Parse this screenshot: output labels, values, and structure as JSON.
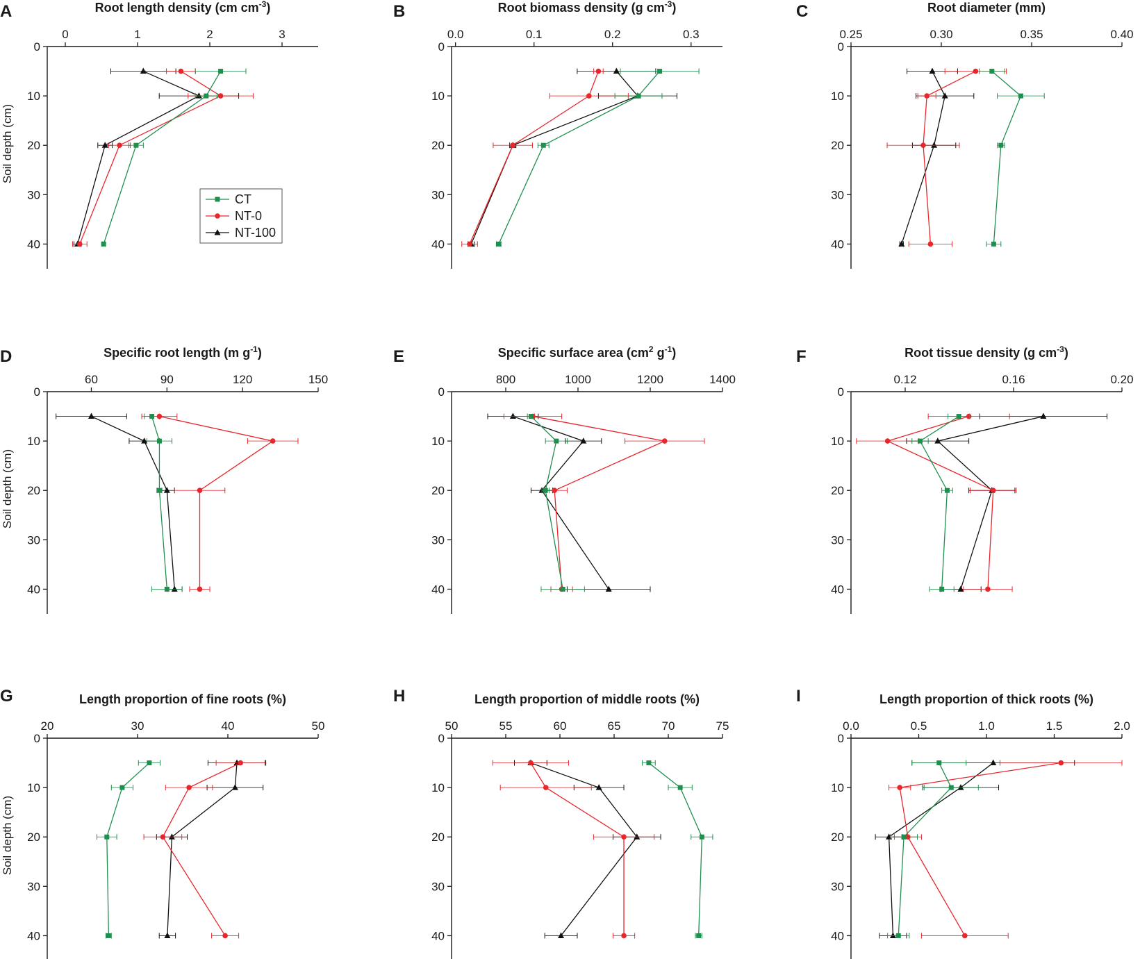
{
  "figure": {
    "y_axis_label": "Soil depth (cm)",
    "series_names": [
      "CT",
      "NT-0",
      "NT-100"
    ]
  },
  "legend": {
    "entries": [
      "CT",
      "NT-0",
      "NT-100"
    ]
  },
  "colors": {
    "CT": "#1f8f4e",
    "NT-0": "#e8262b",
    "NT-100": "#111111",
    "axis": "#1a1a1a"
  },
  "chart_data": [
    {
      "type": "line",
      "panel": "A",
      "title": "Root length density (cm cm-3)",
      "xlabel": "Root length density (cm cm-3)",
      "ylabel": "Soil depth (cm)",
      "xlim": [
        -0.25,
        3.5
      ],
      "xticks": [
        0,
        1,
        2,
        3
      ],
      "xtick_labels": [
        "0",
        "1",
        "2",
        "3"
      ],
      "ylim": [
        0,
        45
      ],
      "yticks": [
        0,
        10,
        20,
        30,
        40
      ],
      "ytick_labels": [
        "0",
        "10",
        "20",
        "30",
        "40"
      ],
      "depths": [
        5,
        10,
        20,
        40
      ],
      "series": [
        {
          "name": "CT",
          "x": [
            2.15,
            1.95,
            0.98,
            0.53
          ],
          "err": [
            0.35,
            0.15,
            0.1,
            0.02
          ]
        },
        {
          "name": "NT-0",
          "x": [
            1.6,
            2.15,
            0.75,
            0.2
          ],
          "err": [
            0.2,
            0.45,
            0.15,
            0.1
          ]
        },
        {
          "name": "NT-100",
          "x": [
            1.08,
            1.85,
            0.55,
            0.17
          ],
          "err": [
            0.45,
            0.55,
            0.1,
            0.05
          ]
        }
      ],
      "legend_visible": true,
      "legend_position": "lower-right"
    },
    {
      "type": "line",
      "panel": "B",
      "title": "Root biomass density (g cm-3)",
      "xlabel": "Root biomass density (g cm-3)",
      "ylabel": "Soil depth (cm)",
      "xlim": [
        -0.005,
        0.34
      ],
      "xticks": [
        0,
        0.1,
        0.2,
        0.3
      ],
      "xtick_labels": [
        "0.0",
        "0.1",
        "0.2",
        "0.3"
      ],
      "ylim": [
        0,
        45
      ],
      "yticks": [
        0,
        10,
        20,
        30,
        40
      ],
      "ytick_labels": [
        "0",
        "10",
        "20",
        "30",
        "40"
      ],
      "depths": [
        5,
        10,
        20,
        40
      ],
      "series": [
        {
          "name": "CT",
          "x": [
            0.26,
            0.233,
            0.112,
            0.055
          ],
          "err": [
            0.05,
            0.03,
            0.007,
            0.003
          ]
        },
        {
          "name": "NT-0",
          "x": [
            0.182,
            0.17,
            0.073,
            0.018
          ],
          "err": [
            0.006,
            0.05,
            0.025,
            0.01
          ]
        },
        {
          "name": "NT-100",
          "x": [
            0.205,
            0.232,
            0.073,
            0.02
          ],
          "err": [
            0.05,
            0.05,
            0.004,
            0.004
          ]
        }
      ],
      "legend_visible": false
    },
    {
      "type": "line",
      "panel": "C",
      "title": "Root diameter (mm)",
      "xlabel": "Root diameter (mm)",
      "ylabel": "Soil depth (cm)",
      "xlim": [
        0.25,
        0.4
      ],
      "xticks": [
        0.25,
        0.3,
        0.35,
        0.4
      ],
      "xtick_labels": [
        "0.25",
        "0.30",
        "0.35",
        "0.40"
      ],
      "ylim": [
        0,
        45
      ],
      "yticks": [
        0,
        10,
        20,
        30,
        40
      ],
      "ytick_labels": [
        "0",
        "10",
        "20",
        "30",
        "40"
      ],
      "depths": [
        5,
        10,
        20,
        40
      ],
      "series": [
        {
          "name": "CT",
          "x": [
            0.328,
            0.344,
            0.333,
            0.329
          ],
          "err": [
            0.007,
            0.013,
            0.002,
            0.004
          ]
        },
        {
          "name": "NT-0",
          "x": [
            0.319,
            0.292,
            0.29,
            0.294
          ],
          "err": [
            0.017,
            0.005,
            0.02,
            0.012
          ]
        },
        {
          "name": "NT-100",
          "x": [
            0.295,
            0.302,
            0.296,
            0.278
          ],
          "err": [
            0.014,
            0.016,
            0.012,
            0.001
          ]
        }
      ],
      "legend_visible": false
    },
    {
      "type": "line",
      "panel": "D",
      "title": "Specific root length (m g-1)",
      "xlabel": "Specific root length (m g-1)",
      "ylabel": "Soil depth (cm)",
      "xlim": [
        42.5,
        150
      ],
      "xticks": [
        60,
        90,
        120,
        150
      ],
      "xtick_labels": [
        "60",
        "90",
        "120",
        "150"
      ],
      "ylim": [
        0,
        45
      ],
      "yticks": [
        0,
        10,
        20,
        30,
        40
      ],
      "ytick_labels": [
        "0",
        "10",
        "20",
        "30",
        "40"
      ],
      "depths": [
        5,
        10,
        20,
        40
      ],
      "series": [
        {
          "name": "CT",
          "x": [
            84,
            87,
            87,
            90
          ],
          "err": [
            3,
            5,
            1,
            6
          ]
        },
        {
          "name": "NT-0",
          "x": [
            87,
            132,
            103,
            103
          ],
          "err": [
            7,
            10,
            10,
            4
          ]
        },
        {
          "name": "NT-100",
          "x": [
            60,
            81,
            90,
            93
          ],
          "err": [
            14,
            6,
            3,
            3
          ]
        }
      ],
      "legend_visible": false
    },
    {
      "type": "line",
      "panel": "E",
      "title": "Specific surface area (cm2 g-1)",
      "xlabel": "Specific surface area (cm2 g-1)",
      "ylabel": "Soil depth (cm)",
      "xlim": [
        650,
        1400
      ],
      "xticks": [
        800,
        1000,
        1200,
        1400
      ],
      "xtick_labels": [
        "800",
        "1000",
        "1200",
        "1400"
      ],
      "ylim": [
        0,
        45
      ],
      "yticks": [
        0,
        10,
        20,
        30,
        40
      ],
      "ytick_labels": [
        "0",
        "10",
        "20",
        "30",
        "40"
      ],
      "depths": [
        5,
        10,
        20,
        40
      ],
      "series": [
        {
          "name": "CT",
          "x": [
            870,
            940,
            910,
            958
          ],
          "err": [
            10,
            30,
            10,
            60
          ]
        },
        {
          "name": "NT-0",
          "x": [
            875,
            1240,
            935,
            955
          ],
          "err": [
            80,
            110,
            35,
            30
          ]
        },
        {
          "name": "NT-100",
          "x": [
            820,
            1015,
            900,
            1085
          ],
          "err": [
            70,
            50,
            30,
            115
          ]
        }
      ],
      "legend_visible": false
    },
    {
      "type": "line",
      "panel": "F",
      "title": "Root tissue density (g cm-3)",
      "xlabel": "Root tissue density (g cm-3)",
      "ylabel": "Soil depth (cm)",
      "xlim": [
        0.1,
        0.2
      ],
      "xticks": [
        0.12,
        0.16,
        0.2
      ],
      "xtick_labels": [
        "0.12",
        "0.16",
        "0.20"
      ],
      "ylim": [
        0,
        45
      ],
      "yticks": [
        0,
        10,
        20,
        30,
        40
      ],
      "ytick_labels": [
        "0",
        "10",
        "20",
        "30",
        "40"
      ],
      "depths": [
        5,
        10,
        20,
        40
      ],
      "series": [
        {
          "name": "CT",
          "x": [
            0.1398,
            0.1255,
            0.1355,
            0.1335
          ],
          "err": [
            0.004,
            0.003,
            0.002,
            0.0045
          ]
        },
        {
          "name": "NT-0",
          "x": [
            0.1435,
            0.1135,
            0.1525,
            0.1505
          ],
          "err": [
            0.015,
            0.0115,
            0.0085,
            0.009
          ]
        },
        {
          "name": "NT-100",
          "x": [
            0.171,
            0.132,
            0.152,
            0.1405
          ],
          "err": [
            0.0235,
            0.0115,
            0.0085,
            0.0075
          ]
        }
      ],
      "legend_visible": false
    },
    {
      "type": "line",
      "panel": "G",
      "title": "Length proportion of fine roots (%)",
      "xlabel": "Length proportion of fine roots (%)",
      "ylabel": "Soil depth (cm)",
      "xlim": [
        20,
        50
      ],
      "xticks": [
        20,
        30,
        40,
        50
      ],
      "xtick_labels": [
        "20",
        "30",
        "40",
        "50"
      ],
      "ylim": [
        0,
        45
      ],
      "yticks": [
        0,
        10,
        20,
        30,
        40
      ],
      "ytick_labels": [
        "0",
        "10",
        "20",
        "30",
        "40"
      ],
      "depths": [
        5,
        10,
        20,
        40
      ],
      "series": [
        {
          "name": "CT",
          "x": [
            31.3,
            28.3,
            26.6,
            26.8
          ],
          "err": [
            1.2,
            1.2,
            1.1,
            0.3
          ]
        },
        {
          "name": "NT-0",
          "x": [
            41.4,
            35.7,
            32.8,
            39.7
          ],
          "err": [
            2.7,
            2.6,
            2.1,
            1.5
          ]
        },
        {
          "name": "NT-100",
          "x": [
            41.0,
            40.8,
            33.8,
            33.3
          ],
          "err": [
            3.2,
            3.1,
            1.7,
            0.9
          ]
        }
      ],
      "legend_visible": false
    },
    {
      "type": "line",
      "panel": "H",
      "title": "Length proportion of middle roots (%)",
      "xlabel": "Length proportion of middle roots (%)",
      "ylabel": "Soil depth (cm)",
      "xlim": [
        50,
        75
      ],
      "xticks": [
        50,
        55,
        60,
        65,
        70,
        75
      ],
      "xtick_labels": [
        "50",
        "55",
        "60",
        "65",
        "70",
        "75"
      ],
      "ylim": [
        0,
        45
      ],
      "yticks": [
        0,
        10,
        20,
        30,
        40
      ],
      "ytick_labels": [
        "0",
        "10",
        "20",
        "30",
        "40"
      ],
      "depths": [
        5,
        10,
        20,
        40
      ],
      "series": [
        {
          "name": "CT",
          "x": [
            68.2,
            71.1,
            73.1,
            72.8
          ],
          "err": [
            0.6,
            1.1,
            1.0,
            0.3
          ]
        },
        {
          "name": "NT-0",
          "x": [
            57.3,
            58.7,
            65.9,
            65.9
          ],
          "err": [
            3.5,
            4.2,
            2.8,
            1.0
          ]
        },
        {
          "name": "NT-100",
          "x": [
            57.3,
            63.6,
            67.1,
            60.1
          ],
          "err": [
            1.5,
            2.3,
            2.2,
            1.5
          ]
        }
      ],
      "legend_visible": false
    },
    {
      "type": "line",
      "panel": "I",
      "title": "Length proportion of thick roots (%)",
      "xlabel": "Length proportion of thick roots (%)",
      "ylabel": "Soil depth (cm)",
      "xlim": [
        0,
        2
      ],
      "xticks": [
        0,
        0.5,
        1,
        1.5,
        2
      ],
      "xtick_labels": [
        "0.0",
        "0.5",
        "1.0",
        "1.5",
        "2.0"
      ],
      "ylim": [
        0,
        45
      ],
      "yticks": [
        0,
        10,
        20,
        30,
        40
      ],
      "ytick_labels": [
        "0",
        "10",
        "20",
        "30",
        "40"
      ],
      "depths": [
        5,
        10,
        20,
        40
      ],
      "series": [
        {
          "name": "CT",
          "x": [
            0.65,
            0.74,
            0.39,
            0.35
          ],
          "err": [
            0.2,
            0.2,
            0.1,
            0.08
          ]
        },
        {
          "name": "NT-0",
          "x": [
            1.55,
            0.36,
            0.42,
            0.84
          ],
          "err": [
            0.45,
            0.08,
            0.1,
            0.32
          ]
        },
        {
          "name": "NT-100",
          "x": [
            1.05,
            0.81,
            0.28,
            0.31
          ],
          "err": [
            0.6,
            0.28,
            0.1,
            0.1
          ]
        }
      ],
      "legend_visible": false
    }
  ]
}
